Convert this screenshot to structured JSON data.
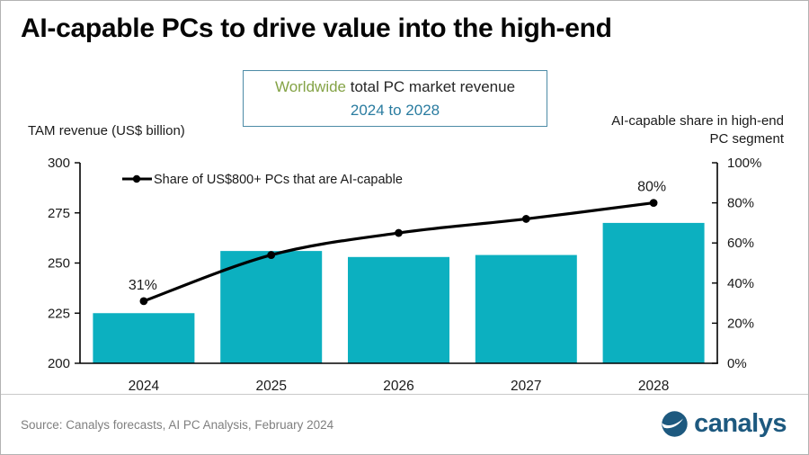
{
  "header": {
    "title": "AI-capable PCs to drive value into the high-end"
  },
  "subtitle": {
    "line1_highlight": "Worldwide",
    "line1_rest": " total PC market revenue",
    "line2": "2024 to 2028"
  },
  "footer": {
    "source": "Source:  Canalys forecasts, AI PC Analysis, February 2024",
    "logo_text": "canalys"
  },
  "colors": {
    "bar": "#0cb0c0",
    "line": "#000000",
    "accent_green": "#84a346",
    "accent_blue": "#2a7ca0",
    "box_border": "#4d8ba6",
    "logo_blue": "#1d597f",
    "axis": "#000000",
    "tick_text": "#1a1a1a",
    "source_gray": "#7f7f7f"
  },
  "chart_data": {
    "type": "bar",
    "title": "Worldwide total PC market revenue 2024 to 2028",
    "categories": [
      "2024",
      "2025",
      "2026",
      "2027",
      "2028"
    ],
    "bar_series": {
      "name": "TAM revenue (US$ billion)",
      "values": [
        225,
        256,
        253,
        254,
        270
      ]
    },
    "line_series": {
      "name": "Share of US$800+ PCs that are AI-capable",
      "values": [
        31,
        54,
        65,
        72,
        80
      ],
      "unit": "%",
      "labeled_points": {
        "0": "31%",
        "4": "80%"
      }
    },
    "axes": {
      "left": {
        "label": "TAM revenue (US$ billion)",
        "min": 200,
        "max": 300,
        "ticks": [
          300,
          275,
          250,
          225,
          200
        ]
      },
      "right": {
        "label": "AI-capable share in high-end PC segment",
        "label_line1": "AI-capable share in high-end",
        "label_line2": "PC segment",
        "min": 0,
        "max": 100,
        "ticks": [
          100,
          80,
          60,
          40,
          20,
          0
        ],
        "tick_suffix": "%"
      }
    },
    "legend": {
      "label": "Share of US$800+ PCs that are AI-capable",
      "position": "top-left-inside"
    },
    "grid": false
  }
}
